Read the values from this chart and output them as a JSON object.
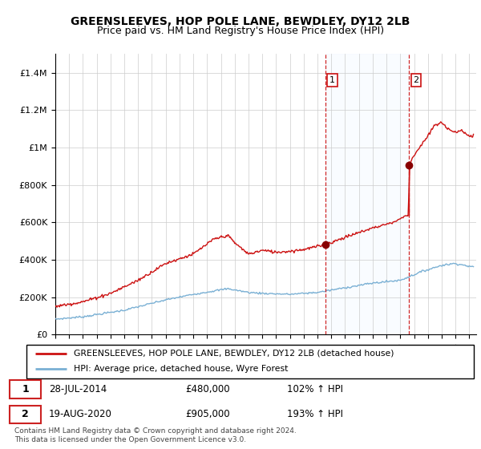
{
  "title": "GREENSLEEVES, HOP POLE LANE, BEWDLEY, DY12 2LB",
  "subtitle": "Price paid vs. HM Land Registry's House Price Index (HPI)",
  "ylim": [
    0,
    1500000
  ],
  "yticks": [
    0,
    200000,
    400000,
    600000,
    800000,
    1000000,
    1200000,
    1400000
  ],
  "ytick_labels": [
    "£0",
    "£200K",
    "£400K",
    "£600K",
    "£800K",
    "£1M",
    "£1.2M",
    "£1.4M"
  ],
  "xlim_start": 1995.0,
  "xlim_end": 2025.5,
  "hpi_color": "#7ab0d4",
  "sale_color": "#cc1111",
  "marker_color": "#880000",
  "dashed_line_color": "#cc1111",
  "shade_color": "#ddeeff",
  "transaction1": {
    "date_num": 2014.57,
    "price": 480000,
    "label": "1"
  },
  "transaction2": {
    "date_num": 2020.63,
    "price": 905000,
    "label": "2"
  },
  "legend_sale_label": "GREENSLEEVES, HOP POLE LANE, BEWDLEY, DY12 2LB (detached house)",
  "legend_hpi_label": "HPI: Average price, detached house, Wyre Forest",
  "table_row1": [
    "1",
    "28-JUL-2014",
    "£480,000",
    "102% ↑ HPI"
  ],
  "table_row2": [
    "2",
    "19-AUG-2020",
    "£905,000",
    "193% ↑ HPI"
  ],
  "footnote": "Contains HM Land Registry data © Crown copyright and database right 2024.\nThis data is licensed under the Open Government Licence v3.0.",
  "background_color": "#ffffff",
  "grid_color": "#cccccc"
}
